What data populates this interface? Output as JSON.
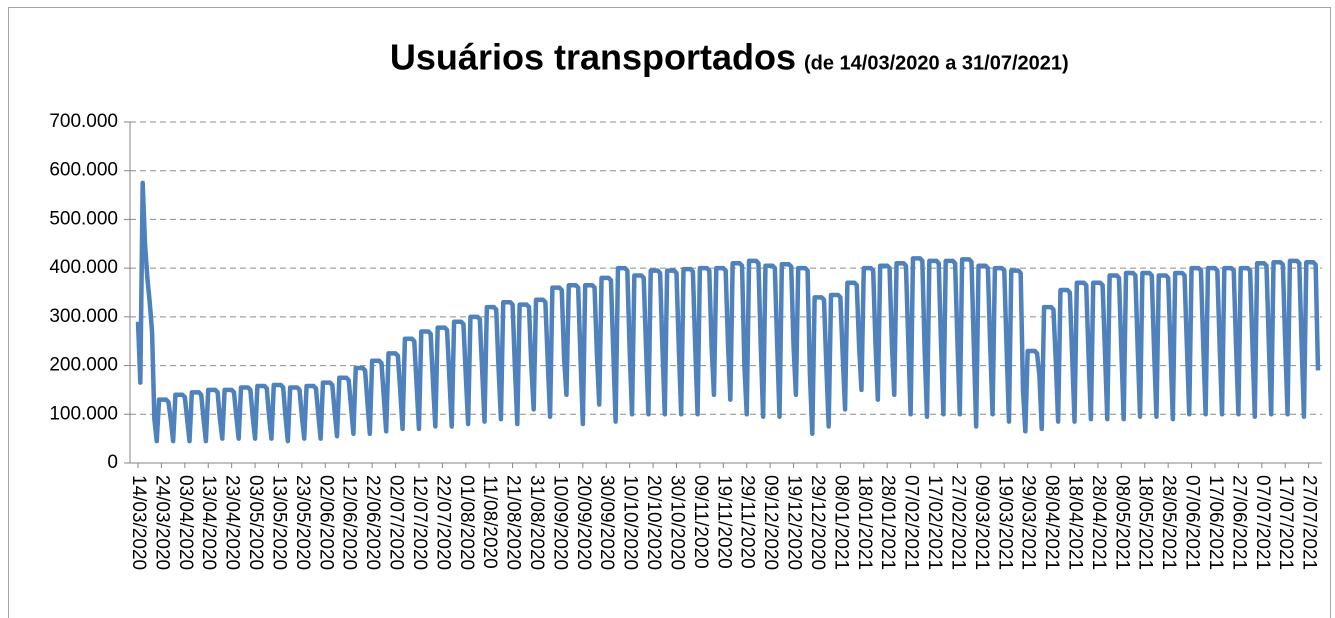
{
  "chart_data": {
    "type": "line",
    "title": "Usuários transportados",
    "subtitle": "(de 14/03/2020 a  31/07/2021)",
    "color": "#4f81bd",
    "grid": true,
    "ylim": [
      0,
      700000
    ],
    "yticks": [
      0,
      {
        "value": 100000,
        "label": "100.000"
      },
      {
        "value": 200000,
        "label": "200.000"
      },
      {
        "value": 300000,
        "label": "300.000"
      },
      {
        "value": 400000,
        "label": "400.000"
      },
      {
        "value": 500000,
        "label": "500.000"
      },
      {
        "value": 600000,
        "label": "600.000"
      },
      {
        "value": 700000,
        "label": "700.000"
      }
    ],
    "categories": [
      "14/03/2020",
      null,
      null,
      null,
      null,
      null,
      null,
      null,
      null,
      null,
      "24/03/2020",
      null,
      null,
      null,
      null,
      null,
      null,
      null,
      null,
      null,
      "03/04/2020",
      null,
      null,
      null,
      null,
      null,
      null,
      null,
      null,
      null,
      "13/04/2020",
      null,
      null,
      null,
      null,
      null,
      null,
      null,
      null,
      null,
      "23/04/2020",
      null,
      null,
      null,
      null,
      null,
      null,
      null,
      null,
      null,
      "03/05/2020",
      null,
      null,
      null,
      null,
      null,
      null,
      null,
      null,
      null,
      "13/05/2020",
      null,
      null,
      null,
      null,
      null,
      null,
      null,
      null,
      null,
      "23/05/2020",
      null,
      null,
      null,
      null,
      null,
      null,
      null,
      null,
      null,
      "02/06/2020",
      null,
      null,
      null,
      null,
      null,
      null,
      null,
      null,
      null,
      "12/06/2020",
      null,
      null,
      null,
      null,
      null,
      null,
      null,
      null,
      null,
      "22/06/2020",
      null,
      null,
      null,
      null,
      null,
      null,
      null,
      null,
      null,
      "02/07/2020",
      null,
      null,
      null,
      null,
      null,
      null,
      null,
      null,
      null,
      "12/07/2020",
      null,
      null,
      null,
      null,
      null,
      null,
      null,
      null,
      null,
      "22/07/2020",
      null,
      null,
      null,
      null,
      null,
      null,
      null,
      null,
      null,
      "01/08/2020",
      null,
      null,
      null,
      null,
      null,
      null,
      null,
      null,
      null,
      "11/08/2020",
      null,
      null,
      null,
      null,
      null,
      null,
      null,
      null,
      null,
      "21/08/2020",
      null,
      null,
      null,
      null,
      null,
      null,
      null,
      null,
      null,
      "31/08/2020",
      null,
      null,
      null,
      null,
      null,
      null,
      null,
      null,
      null,
      "10/09/2020",
      null,
      null,
      null,
      null,
      null,
      null,
      null,
      null,
      null,
      "20/09/2020",
      null,
      null,
      null,
      null,
      null,
      null,
      null,
      null,
      null,
      "30/09/2020",
      null,
      null,
      null,
      null,
      null,
      null,
      null,
      null,
      null,
      "10/10/2020",
      null,
      null,
      null,
      null,
      null,
      null,
      null,
      null,
      null,
      "20/10/2020",
      null,
      null,
      null,
      null,
      null,
      null,
      null,
      null,
      null,
      "30/10/2020",
      null,
      null,
      null,
      null,
      null,
      null,
      null,
      null,
      null,
      "09/11/2020",
      null,
      null,
      null,
      null,
      null,
      null,
      null,
      null,
      null,
      "19/11/2020",
      null,
      null,
      null,
      null,
      null,
      null,
      null,
      null,
      null,
      "29/11/2020",
      null,
      null,
      null,
      null,
      null,
      null,
      null,
      null,
      null,
      "09/12/2020",
      null,
      null,
      null,
      null,
      null,
      null,
      null,
      null,
      null,
      "19/12/2020",
      null,
      null,
      null,
      null,
      null,
      null,
      null,
      null,
      null,
      "29/12/2020",
      null,
      null,
      null,
      null,
      null,
      null,
      null,
      null,
      null,
      "08/01/2021",
      null,
      null,
      null,
      null,
      null,
      null,
      null,
      null,
      null,
      "18/01/2021",
      null,
      null,
      null,
      null,
      null,
      null,
      null,
      null,
      null,
      "28/01/2021",
      null,
      null,
      null,
      null,
      null,
      null,
      null,
      null,
      null,
      "07/02/2021",
      null,
      null,
      null,
      null,
      null,
      null,
      null,
      null,
      null,
      "17/02/2021",
      null,
      null,
      null,
      null,
      null,
      null,
      null,
      null,
      null,
      "27/02/2021",
      null,
      null,
      null,
      null,
      null,
      null,
      null,
      null,
      null,
      "09/03/2021",
      null,
      null,
      null,
      null,
      null,
      null,
      null,
      null,
      null,
      "19/03/2021",
      null,
      null,
      null,
      null,
      null,
      null,
      null,
      null,
      null,
      "29/03/2021",
      null,
      null,
      null,
      null,
      null,
      null,
      null,
      null,
      null,
      "08/04/2021",
      null,
      null,
      null,
      null,
      null,
      null,
      null,
      null,
      null,
      "18/04/2021",
      null,
      null,
      null,
      null,
      null,
      null,
      null,
      null,
      null,
      "28/04/2021",
      null,
      null,
      null,
      null,
      null,
      null,
      null,
      null,
      null,
      "08/05/2021",
      null,
      null,
      null,
      null,
      null,
      null,
      null,
      null,
      null,
      "18/05/2021",
      null,
      null,
      null,
      null,
      null,
      null,
      null,
      null,
      null,
      "28/05/2021",
      null,
      null,
      null,
      null,
      null,
      null,
      null,
      null,
      null,
      "07/06/2021",
      null,
      null,
      null,
      null,
      null,
      null,
      null,
      null,
      null,
      "17/06/2021",
      null,
      null,
      null,
      null,
      null,
      null,
      null,
      null,
      null,
      "27/06/2021",
      null,
      null,
      null,
      null,
      null,
      null,
      null,
      null,
      null,
      "07/07/2021",
      null,
      null,
      null,
      null,
      null,
      null,
      null,
      null,
      null,
      "17/07/2021",
      null,
      null,
      null,
      null,
      null,
      null,
      null,
      null,
      null,
      "27/07/2021",
      null,
      null,
      null,
      null
    ],
    "values": [
      290000,
      165000,
      575000,
      450000,
      380000,
      330000,
      270000,
      90000,
      45000,
      130000,
      130000,
      130000,
      130000,
      125000,
      90000,
      45000,
      140000,
      140000,
      140000,
      140000,
      135000,
      90000,
      45000,
      145000,
      145000,
      145000,
      145000,
      140000,
      90000,
      45000,
      150000,
      150000,
      150000,
      150000,
      145000,
      90000,
      50000,
      150000,
      150000,
      150000,
      150000,
      145000,
      95000,
      50000,
      155000,
      155000,
      155000,
      155000,
      150000,
      95000,
      50000,
      158000,
      158000,
      158000,
      158000,
      153000,
      95000,
      50000,
      160000,
      160000,
      160000,
      160000,
      155000,
      95000,
      45000,
      155000,
      155000,
      155000,
      155000,
      150000,
      95000,
      50000,
      158000,
      158000,
      158000,
      158000,
      153000,
      100000,
      50000,
      165000,
      165000,
      165000,
      165000,
      160000,
      105000,
      55000,
      175000,
      175000,
      175000,
      175000,
      170000,
      115000,
      60000,
      195000,
      195000,
      195000,
      195000,
      190000,
      125000,
      60000,
      210000,
      210000,
      210000,
      210000,
      205000,
      135000,
      65000,
      225000,
      225000,
      225000,
      225000,
      220000,
      150000,
      70000,
      255000,
      255000,
      255000,
      255000,
      250000,
      160000,
      70000,
      270000,
      270000,
      270000,
      270000,
      265000,
      165000,
      75000,
      278000,
      278000,
      278000,
      278000,
      273000,
      175000,
      75000,
      290000,
      290000,
      290000,
      290000,
      285000,
      180000,
      80000,
      300000,
      300000,
      300000,
      300000,
      295000,
      190000,
      85000,
      320000,
      320000,
      320000,
      320000,
      315000,
      195000,
      90000,
      330000,
      330000,
      330000,
      330000,
      325000,
      195000,
      80000,
      325000,
      325000,
      325000,
      325000,
      320000,
      200000,
      110000,
      335000,
      335000,
      335000,
      335000,
      330000,
      210000,
      95000,
      360000,
      360000,
      360000,
      360000,
      355000,
      215000,
      140000,
      365000,
      365000,
      365000,
      365000,
      360000,
      215000,
      80000,
      365000,
      365000,
      365000,
      365000,
      360000,
      225000,
      120000,
      380000,
      380000,
      380000,
      380000,
      375000,
      230000,
      85000,
      400000,
      400000,
      400000,
      400000,
      395000,
      230000,
      100000,
      385000,
      385000,
      385000,
      385000,
      380000,
      235000,
      100000,
      395000,
      395000,
      395000,
      395000,
      390000,
      235000,
      100000,
      395000,
      395000,
      395000,
      395000,
      390000,
      235000,
      100000,
      398000,
      398000,
      398000,
      398000,
      393000,
      240000,
      100000,
      400000,
      400000,
      400000,
      400000,
      395000,
      240000,
      140000,
      400000,
      400000,
      400000,
      400000,
      395000,
      245000,
      130000,
      410000,
      410000,
      410000,
      410000,
      405000,
      200000,
      100000,
      415000,
      415000,
      415000,
      415000,
      410000,
      240000,
      95000,
      405000,
      405000,
      405000,
      405000,
      400000,
      245000,
      95000,
      408000,
      408000,
      408000,
      408000,
      403000,
      240000,
      140000,
      400000,
      400000,
      400000,
      400000,
      395000,
      180000,
      60000,
      340000,
      340000,
      340000,
      340000,
      335000,
      200000,
      75000,
      345000,
      345000,
      345000,
      345000,
      340000,
      220000,
      110000,
      370000,
      370000,
      370000,
      370000,
      365000,
      240000,
      150000,
      400000,
      400000,
      400000,
      400000,
      395000,
      245000,
      130000,
      405000,
      405000,
      405000,
      405000,
      400000,
      245000,
      140000,
      410000,
      410000,
      410000,
      410000,
      405000,
      250000,
      100000,
      420000,
      420000,
      420000,
      420000,
      415000,
      230000,
      95000,
      415000,
      415000,
      415000,
      415000,
      410000,
      245000,
      100000,
      415000,
      415000,
      415000,
      415000,
      410000,
      250000,
      100000,
      418000,
      418000,
      418000,
      418000,
      413000,
      240000,
      75000,
      405000,
      405000,
      405000,
      405000,
      400000,
      240000,
      100000,
      400000,
      400000,
      400000,
      400000,
      395000,
      235000,
      85000,
      395000,
      395000,
      395000,
      395000,
      390000,
      150000,
      65000,
      230000,
      230000,
      230000,
      230000,
      225000,
      180000,
      70000,
      320000,
      320000,
      320000,
      320000,
      315000,
      210000,
      85000,
      355000,
      355000,
      355000,
      355000,
      350000,
      220000,
      85000,
      370000,
      370000,
      370000,
      370000,
      365000,
      220000,
      90000,
      370000,
      370000,
      370000,
      370000,
      365000,
      230000,
      90000,
      385000,
      385000,
      385000,
      385000,
      380000,
      235000,
      90000,
      390000,
      390000,
      390000,
      390000,
      385000,
      235000,
      95000,
      390000,
      390000,
      390000,
      390000,
      385000,
      230000,
      95000,
      385000,
      385000,
      385000,
      385000,
      380000,
      235000,
      90000,
      390000,
      390000,
      390000,
      390000,
      385000,
      240000,
      100000,
      400000,
      400000,
      400000,
      400000,
      395000,
      240000,
      100000,
      400000,
      400000,
      400000,
      400000,
      395000,
      240000,
      100000,
      400000,
      400000,
      400000,
      400000,
      395000,
      240000,
      100000,
      400000,
      400000,
      400000,
      400000,
      395000,
      245000,
      95000,
      410000,
      410000,
      410000,
      410000,
      405000,
      245000,
      100000,
      412000,
      412000,
      412000,
      412000,
      407000,
      245000,
      100000,
      415000,
      415000,
      415000,
      415000,
      410000,
      245000,
      95000,
      412000,
      412000,
      412000,
      412000,
      407000,
      190000
    ]
  }
}
